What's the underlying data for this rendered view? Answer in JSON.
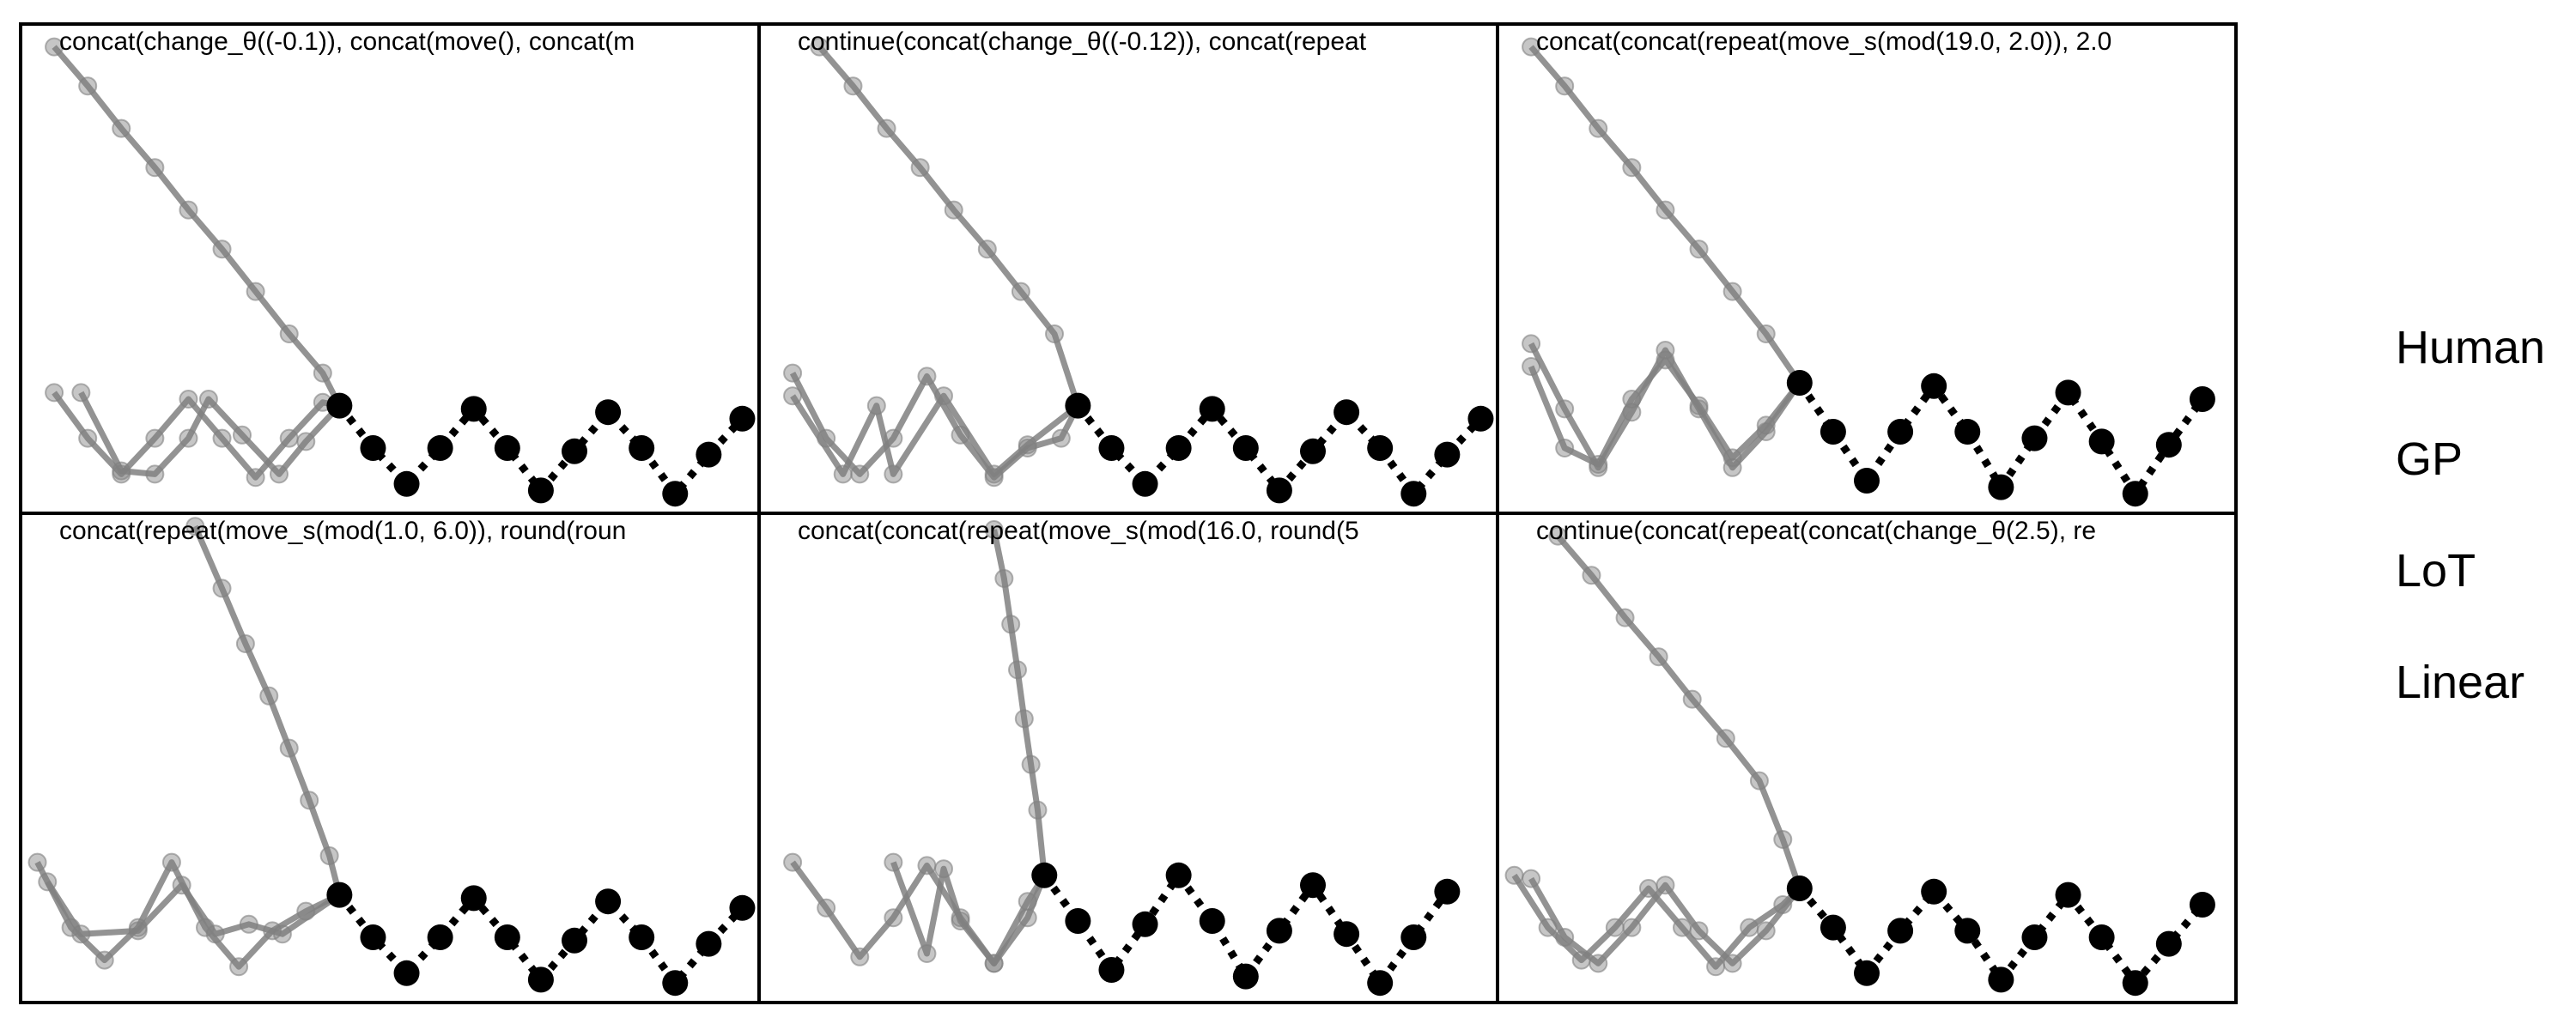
{
  "chart_data": {
    "type": "scatter",
    "legend": {
      "placement": "right",
      "entries": [
        "Human",
        "GP",
        "LoT",
        "Linear"
      ]
    },
    "colors": {
      "observed": "#000000",
      "prediction": "#808080",
      "background": "#ffffff"
    },
    "grid": false,
    "xlim": [
      0,
      22
    ],
    "ylim": [
      0,
      15
    ],
    "panels": [
      {
        "title": "concat(change_θ((-0.1)), concat(move(), concat(m",
        "observed": [
          [
            9.5,
            3.3
          ],
          [
            10.5,
            2.0
          ],
          [
            11.5,
            0.9
          ],
          [
            12.5,
            2.0
          ],
          [
            13.5,
            3.2
          ],
          [
            14.5,
            2.0
          ],
          [
            15.5,
            0.7
          ],
          [
            16.5,
            1.9
          ],
          [
            17.5,
            3.1
          ],
          [
            18.5,
            2.0
          ],
          [
            19.5,
            0.6
          ],
          [
            20.5,
            1.8
          ],
          [
            21.5,
            2.9
          ]
        ],
        "predictions": [
          [
            [
              1,
              14.3
            ],
            [
              2,
              13.1
            ],
            [
              3,
              11.8
            ],
            [
              4,
              10.6
            ],
            [
              5,
              9.3
            ],
            [
              6,
              8.1
            ],
            [
              7,
              6.8
            ],
            [
              8,
              5.5
            ],
            [
              9,
              4.3
            ],
            [
              9.5,
              3.3
            ]
          ],
          [
            [
              1,
              3.7
            ],
            [
              2,
              2.3
            ],
            [
              3,
              1.2
            ],
            [
              4,
              2.3
            ],
            [
              5,
              3.5
            ],
            [
              6,
              2.3
            ],
            [
              7,
              1.1
            ],
            [
              8,
              2.3
            ],
            [
              9,
              3.4
            ],
            [
              9.5,
              3.3
            ]
          ],
          [
            [
              1.8,
              3.7
            ],
            [
              3,
              1.3
            ],
            [
              4,
              1.2
            ],
            [
              5,
              2.3
            ],
            [
              5.6,
              3.5
            ],
            [
              6.6,
              2.4
            ],
            [
              7.7,
              1.2
            ],
            [
              8.5,
              2.2
            ],
            [
              9.5,
              3.3
            ]
          ]
        ]
      },
      {
        "title": "continue(concat(change_θ((-0.12)), concat(repeat",
        "observed": [
          [
            9.5,
            3.3
          ],
          [
            10.5,
            2.0
          ],
          [
            11.5,
            0.9
          ],
          [
            12.5,
            2.0
          ],
          [
            13.5,
            3.2
          ],
          [
            14.5,
            2.0
          ],
          [
            15.5,
            0.7
          ],
          [
            16.5,
            1.9
          ],
          [
            17.5,
            3.1
          ],
          [
            18.5,
            2.0
          ],
          [
            19.5,
            0.6
          ],
          [
            20.5,
            1.8
          ],
          [
            21.5,
            2.9
          ]
        ],
        "predictions": [
          [
            [
              1.8,
              14.3
            ],
            [
              2.8,
              13.1
            ],
            [
              3.8,
              11.8
            ],
            [
              4.8,
              10.6
            ],
            [
              5.8,
              9.3
            ],
            [
              6.8,
              8.1
            ],
            [
              7.8,
              6.8
            ],
            [
              8.8,
              5.5
            ],
            [
              9.5,
              3.3
            ]
          ],
          [
            [
              1,
              4.3
            ],
            [
              2,
              2.3
            ],
            [
              3,
              1.2
            ],
            [
              4,
              2.3
            ],
            [
              5,
              4.2
            ],
            [
              6,
              2.4
            ],
            [
              7,
              1.1
            ],
            [
              8,
              2.0
            ],
            [
              9,
              2.3
            ],
            [
              9.5,
              3.3
            ]
          ],
          [
            [
              1,
              3.6
            ],
            [
              2.5,
              1.2
            ],
            [
              3.5,
              3.3
            ],
            [
              4,
              1.2
            ],
            [
              5.5,
              3.6
            ],
            [
              7,
              1.2
            ],
            [
              8,
              2.1
            ],
            [
              9.5,
              3.3
            ]
          ]
        ]
      },
      {
        "title": "concat(concat(repeat(move_s(mod(19.0, 2.0)), 2.0",
        "observed": [
          [
            9.0,
            4.0
          ],
          [
            10.0,
            2.5
          ],
          [
            11.0,
            1.0
          ],
          [
            12.0,
            2.5
          ],
          [
            13.0,
            3.9
          ],
          [
            14.0,
            2.5
          ],
          [
            15.0,
            0.8
          ],
          [
            16.0,
            2.3
          ],
          [
            17.0,
            3.7
          ],
          [
            18.0,
            2.2
          ],
          [
            19.0,
            0.6
          ],
          [
            20.0,
            2.1
          ],
          [
            21.0,
            3.5
          ]
        ],
        "predictions": [
          [
            [
              1.0,
              14.3
            ],
            [
              2.0,
              13.1
            ],
            [
              3.0,
              11.8
            ],
            [
              4.0,
              10.6
            ],
            [
              5.0,
              9.3
            ],
            [
              6.0,
              8.1
            ],
            [
              7.0,
              6.8
            ],
            [
              8.0,
              5.5
            ],
            [
              9.0,
              4.0
            ]
          ],
          [
            [
              1,
              5.2
            ],
            [
              2,
              3.2
            ],
            [
              3,
              1.4
            ],
            [
              4,
              3.1
            ],
            [
              5,
              5.0
            ],
            [
              6,
              3.2
            ],
            [
              7,
              1.4
            ],
            [
              8,
              2.5
            ],
            [
              9,
              4.0
            ]
          ],
          [
            [
              1,
              4.5
            ],
            [
              2,
              2.0
            ],
            [
              3,
              1.5
            ],
            [
              4,
              3.5
            ],
            [
              5,
              4.7
            ],
            [
              6,
              3.3
            ],
            [
              7,
              1.7
            ],
            [
              8,
              2.7
            ],
            [
              9,
              4.0
            ]
          ]
        ]
      },
      {
        "title": "concat(repeat(move_s(mod(1.0, 6.0)), round(roun",
        "observed": [
          [
            9.5,
            3.3
          ],
          [
            10.5,
            2.0
          ],
          [
            11.5,
            0.9
          ],
          [
            12.5,
            2.0
          ],
          [
            13.5,
            3.2
          ],
          [
            14.5,
            2.0
          ],
          [
            15.5,
            0.7
          ],
          [
            16.5,
            1.9
          ],
          [
            17.5,
            3.1
          ],
          [
            18.5,
            2.0
          ],
          [
            19.5,
            0.6
          ],
          [
            20.5,
            1.8
          ],
          [
            21.5,
            2.9
          ]
        ],
        "predictions": [
          [
            [
              5.2,
              14.6
            ],
            [
              6,
              12.7
            ],
            [
              6.7,
              11.0
            ],
            [
              7.4,
              9.4
            ],
            [
              8,
              7.8
            ],
            [
              8.6,
              6.2
            ],
            [
              9.2,
              4.5
            ],
            [
              9.5,
              3.3
            ]
          ],
          [
            [
              0.5,
              4.3
            ],
            [
              1.5,
              2.3
            ],
            [
              2.5,
              1.3
            ],
            [
              3.5,
              2.3
            ],
            [
              4.5,
              4.3
            ],
            [
              5.5,
              2.3
            ],
            [
              6.5,
              1.1
            ],
            [
              7.5,
              2.2
            ],
            [
              8.5,
              2.8
            ],
            [
              9.5,
              3.3
            ]
          ],
          [
            [
              0.8,
              3.7
            ],
            [
              1.8,
              2.1
            ],
            [
              3.5,
              2.2
            ],
            [
              4.8,
              3.6
            ],
            [
              5.8,
              2.1
            ],
            [
              6.8,
              2.4
            ],
            [
              7.8,
              2.1
            ],
            [
              9.5,
              3.3
            ]
          ]
        ]
      },
      {
        "title": "concat(concat(repeat(move_s(mod(16.0, round(5",
        "observed": [
          [
            8.5,
            3.9
          ],
          [
            9.5,
            2.5
          ],
          [
            10.5,
            1.0
          ],
          [
            11.5,
            2.4
          ],
          [
            12.5,
            3.9
          ],
          [
            13.5,
            2.5
          ],
          [
            14.5,
            0.8
          ],
          [
            15.5,
            2.2
          ],
          [
            16.5,
            3.6
          ],
          [
            17.5,
            2.1
          ],
          [
            18.5,
            0.6
          ],
          [
            19.5,
            2.0
          ],
          [
            20.5,
            3.4
          ]
        ],
        "predictions": [
          [
            [
              7.0,
              14.5
            ],
            [
              7.3,
              13.0
            ],
            [
              7.5,
              11.6
            ],
            [
              7.7,
              10.2
            ],
            [
              7.9,
              8.7
            ],
            [
              8.1,
              7.3
            ],
            [
              8.3,
              5.9
            ],
            [
              8.5,
              3.9
            ]
          ],
          [
            [
              1,
              4.3
            ],
            [
              2,
              2.9
            ],
            [
              3,
              1.4
            ],
            [
              4,
              2.6
            ],
            [
              5,
              4.2
            ],
            [
              6,
              2.6
            ],
            [
              7,
              1.2
            ],
            [
              8,
              2.6
            ],
            [
              8.5,
              3.9
            ]
          ],
          [
            [
              4,
              4.3
            ],
            [
              5,
              1.5
            ],
            [
              5.5,
              4.1
            ],
            [
              6,
              2.5
            ],
            [
              7,
              1.2
            ],
            [
              8,
              3.1
            ],
            [
              8.5,
              3.9
            ]
          ]
        ]
      },
      {
        "title": "continue(concat(repeat(concat(change_θ(2.5), re",
        "observed": [
          [
            9.0,
            3.5
          ],
          [
            10.0,
            2.3
          ],
          [
            11.0,
            0.9
          ],
          [
            12.0,
            2.2
          ],
          [
            13.0,
            3.4
          ],
          [
            14.0,
            2.2
          ],
          [
            15.0,
            0.7
          ],
          [
            16.0,
            2.0
          ],
          [
            17.0,
            3.3
          ],
          [
            18.0,
            2.0
          ],
          [
            19.0,
            0.6
          ],
          [
            20.0,
            1.8
          ],
          [
            21.0,
            3.0
          ]
        ],
        "predictions": [
          [
            [
              1.8,
              14.3
            ],
            [
              2.8,
              13.1
            ],
            [
              3.8,
              11.8
            ],
            [
              4.8,
              10.6
            ],
            [
              5.8,
              9.3
            ],
            [
              6.8,
              8.1
            ],
            [
              7.8,
              6.8
            ],
            [
              8.5,
              5.0
            ],
            [
              9.0,
              3.5
            ]
          ],
          [
            [
              0.5,
              3.9
            ],
            [
              1.5,
              2.3
            ],
            [
              2.5,
              1.3
            ],
            [
              3.5,
              2.3
            ],
            [
              4.5,
              3.5
            ],
            [
              5.5,
              2.3
            ],
            [
              6.5,
              1.1
            ],
            [
              7.5,
              2.3
            ],
            [
              8.5,
              3.0
            ],
            [
              9.0,
              3.5
            ]
          ],
          [
            [
              1,
              3.8
            ],
            [
              2,
              2.0
            ],
            [
              3,
              1.2
            ],
            [
              4,
              2.3
            ],
            [
              5,
              3.6
            ],
            [
              6,
              2.2
            ],
            [
              7,
              1.2
            ],
            [
              8,
              2.2
            ],
            [
              9.0,
              3.5
            ]
          ]
        ]
      }
    ]
  }
}
